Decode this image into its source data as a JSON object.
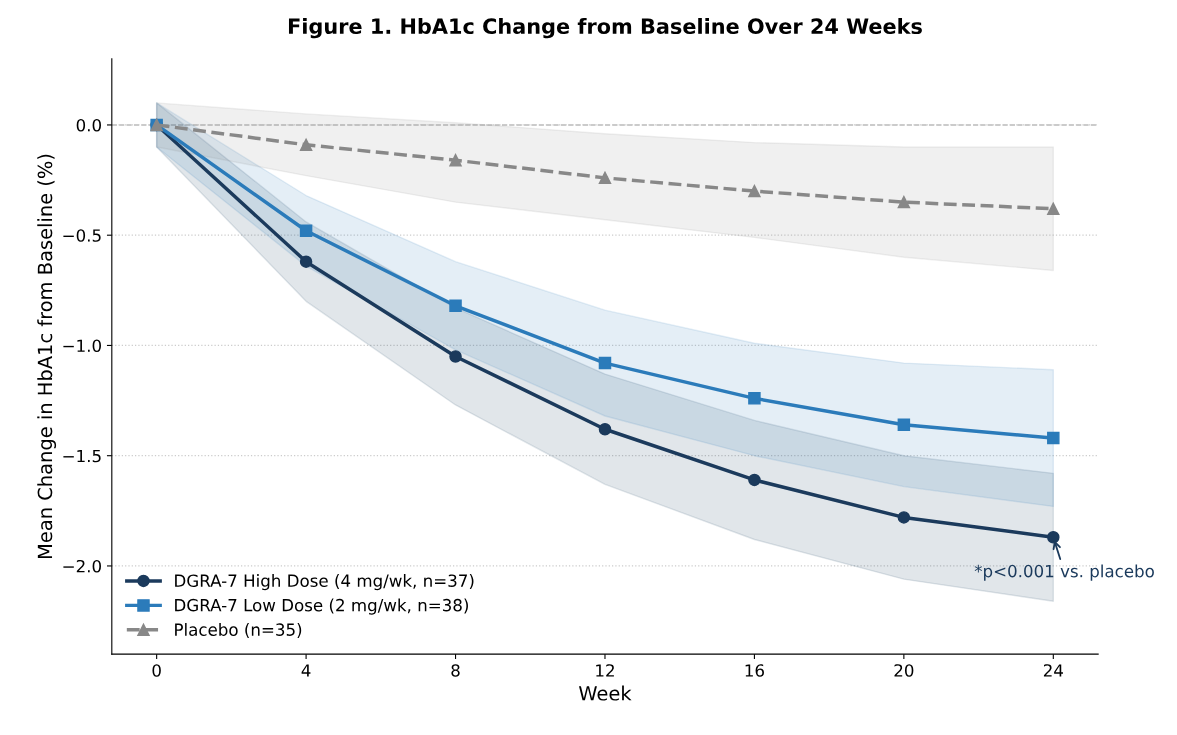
{
  "chart_data": {
    "type": "line",
    "title": "Figure 1. HbA1c Change from Baseline Over 24 Weeks",
    "xlabel": "Week",
    "ylabel": "Mean Change in HbA1c from Baseline (%)",
    "x": [
      0,
      4,
      8,
      12,
      16,
      20,
      24
    ],
    "series": [
      {
        "name": "DGRA-7 High Dose (4 mg/wk, n=37)",
        "color": "#1b3a5c",
        "marker": "circle",
        "line_style": "solid",
        "values": [
          0,
          -0.62,
          -1.05,
          -1.38,
          -1.61,
          -1.78,
          -1.87
        ],
        "lower": [
          -0.1,
          -0.8,
          -1.27,
          -1.63,
          -1.88,
          -2.06,
          -2.16
        ],
        "upper": [
          0.1,
          -0.44,
          -0.83,
          -1.13,
          -1.34,
          -1.5,
          -1.58
        ]
      },
      {
        "name": "DGRA-7 Low Dose (2 mg/wk, n=38)",
        "color": "#2b7bba",
        "marker": "square",
        "line_style": "solid",
        "values": [
          0,
          -0.48,
          -0.82,
          -1.08,
          -1.24,
          -1.36,
          -1.42
        ],
        "lower": [
          -0.1,
          -0.64,
          -1.02,
          -1.32,
          -1.5,
          -1.64,
          -1.73
        ],
        "upper": [
          0.1,
          -0.32,
          -0.62,
          -0.84,
          -0.99,
          -1.08,
          -1.11
        ]
      },
      {
        "name": "Placebo (n=35)",
        "color": "#888888",
        "marker": "triangle",
        "line_style": "dashed",
        "values": [
          0,
          -0.09,
          -0.16,
          -0.24,
          -0.3,
          -0.35,
          -0.38
        ],
        "lower": [
          -0.1,
          -0.23,
          -0.35,
          -0.43,
          -0.51,
          -0.6,
          -0.66
        ],
        "upper": [
          0.1,
          0.05,
          0.01,
          -0.04,
          -0.08,
          -0.1,
          -0.1
        ]
      }
    ],
    "xlim": [
      -1.2,
      25.2
    ],
    "ylim": [
      -2.4,
      0.3
    ],
    "xticks": [
      0,
      4,
      8,
      12,
      16,
      20,
      24
    ],
    "yticks": [
      {
        "value": 0,
        "label": "0.0"
      },
      {
        "value": -0.5,
        "label": "−0.5"
      },
      {
        "value": -1,
        "label": "−1.0"
      },
      {
        "value": -1.5,
        "label": "−1.5"
      },
      {
        "value": -2,
        "label": "−2.0"
      }
    ],
    "ref_lines": [
      {
        "axis": "y",
        "value": 0,
        "color": "#bbbbbb",
        "line_style": "dashed"
      }
    ],
    "annotations": [
      {
        "text": "*p<0.001 vs. placebo",
        "x": 24,
        "y": -1.87
      }
    ],
    "grid": "y",
    "legend": "bottom left"
  }
}
